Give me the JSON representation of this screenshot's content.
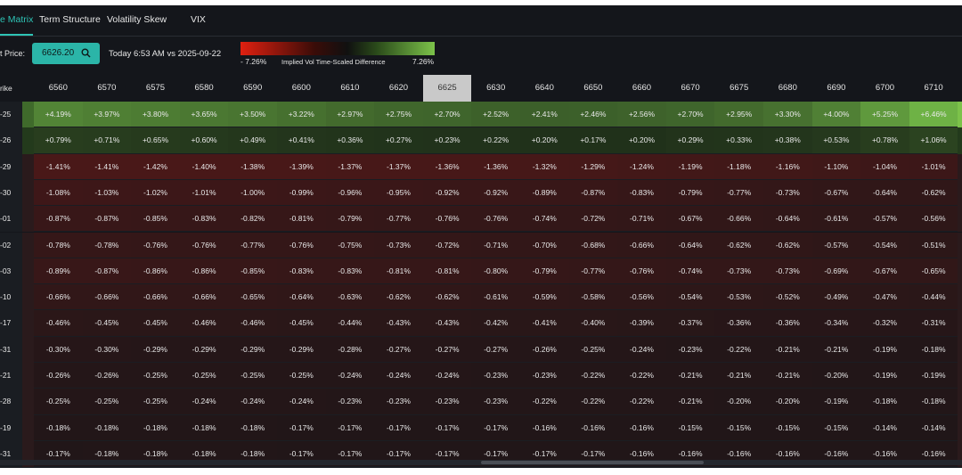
{
  "tabs": [
    "e Matrix",
    "Term Structure",
    "Volatility Skew",
    "VIX"
  ],
  "toolbar": {
    "price_label": "t Price:",
    "price": "6626.20",
    "comparison": "Today 6:53 AM vs 2025-09-22",
    "scale": {
      "min_label": "- 7.26%",
      "title": "Implied Vol Time-Scaled Difference",
      "max_label": "7.26%"
    }
  },
  "table": {
    "corner": "rike",
    "selected_column": 8,
    "columns": [
      "6560",
      "6570",
      "6575",
      "6580",
      "6590",
      "6600",
      "6610",
      "6620",
      "6625",
      "6630",
      "6640",
      "6650",
      "6660",
      "6670",
      "6675",
      "6680",
      "6690",
      "6700",
      "6710"
    ],
    "rows": [
      {
        "label": "-25",
        "cells": [
          "+4.19%",
          "+3.97%",
          "+3.80%",
          "+3.65%",
          "+3.50%",
          "+3.22%",
          "+2.97%",
          "+2.75%",
          "+2.70%",
          "+2.52%",
          "+2.41%",
          "+2.46%",
          "+2.56%",
          "+2.70%",
          "+2.95%",
          "+3.30%",
          "+4.00%",
          "+5.25%",
          "+6.46%"
        ]
      },
      {
        "label": "-26",
        "cells": [
          "+0.79%",
          "+0.71%",
          "+0.65%",
          "+0.60%",
          "+0.49%",
          "+0.41%",
          "+0.36%",
          "+0.27%",
          "+0.23%",
          "+0.22%",
          "+0.20%",
          "+0.17%",
          "+0.20%",
          "+0.29%",
          "+0.33%",
          "+0.38%",
          "+0.53%",
          "+0.78%",
          "+1.06%"
        ]
      },
      {
        "label": "-29",
        "cells": [
          "-1.41%",
          "-1.41%",
          "-1.42%",
          "-1.40%",
          "-1.38%",
          "-1.39%",
          "-1.37%",
          "-1.37%",
          "-1.36%",
          "-1.36%",
          "-1.32%",
          "-1.29%",
          "-1.24%",
          "-1.19%",
          "-1.18%",
          "-1.16%",
          "-1.10%",
          "-1.04%",
          "-1.01%"
        ]
      },
      {
        "label": "-30",
        "cells": [
          "-1.08%",
          "-1.03%",
          "-1.02%",
          "-1.01%",
          "-1.00%",
          "-0.99%",
          "-0.96%",
          "-0.95%",
          "-0.92%",
          "-0.92%",
          "-0.89%",
          "-0.87%",
          "-0.83%",
          "-0.79%",
          "-0.77%",
          "-0.73%",
          "-0.67%",
          "-0.64%",
          "-0.62%"
        ]
      },
      {
        "label": "-01",
        "cells": [
          "-0.87%",
          "-0.87%",
          "-0.85%",
          "-0.83%",
          "-0.82%",
          "-0.81%",
          "-0.79%",
          "-0.77%",
          "-0.76%",
          "-0.76%",
          "-0.74%",
          "-0.72%",
          "-0.71%",
          "-0.67%",
          "-0.66%",
          "-0.64%",
          "-0.61%",
          "-0.57%",
          "-0.56%"
        ]
      },
      {
        "label": "-02",
        "cells": [
          "-0.78%",
          "-0.78%",
          "-0.76%",
          "-0.76%",
          "-0.77%",
          "-0.76%",
          "-0.75%",
          "-0.73%",
          "-0.72%",
          "-0.71%",
          "-0.70%",
          "-0.68%",
          "-0.66%",
          "-0.64%",
          "-0.62%",
          "-0.62%",
          "-0.57%",
          "-0.54%",
          "-0.51%"
        ]
      },
      {
        "label": "-03",
        "cells": [
          "-0.89%",
          "-0.87%",
          "-0.86%",
          "-0.86%",
          "-0.85%",
          "-0.83%",
          "-0.83%",
          "-0.81%",
          "-0.81%",
          "-0.80%",
          "-0.79%",
          "-0.77%",
          "-0.76%",
          "-0.74%",
          "-0.73%",
          "-0.73%",
          "-0.69%",
          "-0.67%",
          "-0.65%"
        ]
      },
      {
        "label": "-10",
        "cells": [
          "-0.66%",
          "-0.66%",
          "-0.66%",
          "-0.66%",
          "-0.65%",
          "-0.64%",
          "-0.63%",
          "-0.62%",
          "-0.62%",
          "-0.61%",
          "-0.59%",
          "-0.58%",
          "-0.56%",
          "-0.54%",
          "-0.53%",
          "-0.52%",
          "-0.49%",
          "-0.47%",
          "-0.44%"
        ]
      },
      {
        "label": "-17",
        "cells": [
          "-0.46%",
          "-0.45%",
          "-0.45%",
          "-0.46%",
          "-0.46%",
          "-0.45%",
          "-0.44%",
          "-0.43%",
          "-0.43%",
          "-0.42%",
          "-0.41%",
          "-0.40%",
          "-0.39%",
          "-0.37%",
          "-0.36%",
          "-0.36%",
          "-0.34%",
          "-0.32%",
          "-0.31%"
        ]
      },
      {
        "label": "-31",
        "cells": [
          "-0.30%",
          "-0.30%",
          "-0.29%",
          "-0.29%",
          "-0.29%",
          "-0.29%",
          "-0.28%",
          "-0.27%",
          "-0.27%",
          "-0.27%",
          "-0.26%",
          "-0.25%",
          "-0.24%",
          "-0.23%",
          "-0.22%",
          "-0.21%",
          "-0.21%",
          "-0.19%",
          "-0.18%"
        ]
      },
      {
        "label": "-21",
        "cells": [
          "-0.26%",
          "-0.26%",
          "-0.25%",
          "-0.25%",
          "-0.25%",
          "-0.25%",
          "-0.24%",
          "-0.24%",
          "-0.24%",
          "-0.23%",
          "-0.23%",
          "-0.22%",
          "-0.22%",
          "-0.21%",
          "-0.21%",
          "-0.21%",
          "-0.20%",
          "-0.19%",
          "-0.19%"
        ]
      },
      {
        "label": "-28",
        "cells": [
          "-0.25%",
          "-0.25%",
          "-0.25%",
          "-0.24%",
          "-0.24%",
          "-0.24%",
          "-0.23%",
          "-0.23%",
          "-0.23%",
          "-0.23%",
          "-0.22%",
          "-0.22%",
          "-0.22%",
          "-0.21%",
          "-0.20%",
          "-0.20%",
          "-0.19%",
          "-0.18%",
          "-0.18%"
        ]
      },
      {
        "label": "-19",
        "cells": [
          "-0.18%",
          "-0.18%",
          "-0.18%",
          "-0.18%",
          "-0.18%",
          "-0.17%",
          "-0.17%",
          "-0.17%",
          "-0.17%",
          "-0.17%",
          "-0.16%",
          "-0.16%",
          "-0.16%",
          "-0.15%",
          "-0.15%",
          "-0.15%",
          "-0.15%",
          "-0.14%",
          "-0.14%"
        ]
      },
      {
        "label": "-31",
        "cells": [
          "-0.17%",
          "-0.18%",
          "-0.18%",
          "-0.18%",
          "-0.18%",
          "-0.17%",
          "-0.17%",
          "-0.17%",
          "-0.17%",
          "-0.17%",
          "-0.17%",
          "-0.17%",
          "-0.16%",
          "-0.16%",
          "-0.16%",
          "-0.16%",
          "-0.16%",
          "-0.16%",
          "-0.16%"
        ]
      }
    ]
  }
}
